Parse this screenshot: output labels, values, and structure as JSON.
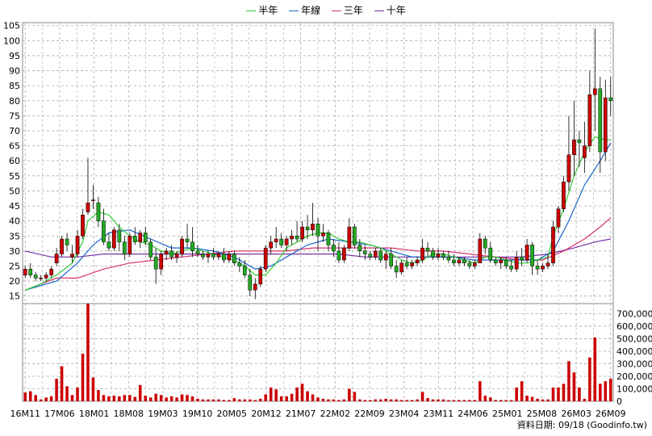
{
  "legend": [
    {
      "name": "半年",
      "color": "#33cc33"
    },
    {
      "name": "年線",
      "color": "#1a66cc"
    },
    {
      "name": "三年",
      "color": "#d6336c"
    },
    {
      "name": "十年",
      "color": "#7a2fa8"
    }
  ],
  "source_text": "資料日期: 09/18  (Goodinfo.tw)",
  "chart_data": {
    "type": "candlestick",
    "price_axis": {
      "ticks": [
        15,
        20,
        25,
        30,
        35,
        40,
        45,
        50,
        55,
        60,
        65,
        70,
        75,
        80,
        85,
        90,
        95,
        100,
        105
      ],
      "ylim": [
        12.5,
        106
      ]
    },
    "volume_axis": {
      "ticks": [
        0,
        100000,
        200000,
        300000,
        400000,
        500000,
        600000,
        700000
      ],
      "tick_labels": [
        "0",
        "100,000",
        "200,000",
        "300,000",
        "400,000",
        "500,000",
        "600,000",
        "700,000"
      ],
      "ylim": [
        0,
        780000
      ]
    },
    "x_labels": [
      "16M11",
      "17M06",
      "18M01",
      "18M08",
      "19M03",
      "19M10",
      "20M05",
      "20M12",
      "21M07",
      "22M02",
      "22M09",
      "23M04",
      "23M11",
      "24M06",
      "25M01",
      "25M08",
      "26M03",
      "26M09"
    ],
    "colors": {
      "up": "#cc0000",
      "down": "#22aa22",
      "volume": "#cc0000",
      "grid": "#aaaaaa"
    },
    "grid": true,
    "candles": [
      [
        22,
        25,
        21,
        24
      ],
      [
        24,
        26,
        21,
        22
      ],
      [
        22,
        23,
        20,
        21
      ],
      [
        21,
        22,
        20,
        21
      ],
      [
        21,
        23,
        20,
        22
      ],
      [
        22,
        25,
        21,
        24
      ],
      [
        26,
        31,
        25,
        29
      ],
      [
        29,
        35,
        28,
        34
      ],
      [
        34,
        36,
        30,
        32
      ],
      [
        28,
        32,
        26,
        29
      ],
      [
        29,
        37,
        28,
        35
      ],
      [
        35,
        44,
        34,
        42
      ],
      [
        43,
        61,
        42,
        46
      ],
      [
        47,
        52,
        44,
        47
      ],
      [
        46,
        48,
        38,
        40
      ],
      [
        40,
        44,
        32,
        33
      ],
      [
        33,
        36,
        30,
        31
      ],
      [
        31,
        38,
        30,
        37
      ],
      [
        37,
        39,
        30,
        33
      ],
      [
        33,
        35,
        27,
        29
      ],
      [
        29,
        36,
        28,
        35
      ],
      [
        35,
        38,
        32,
        33
      ],
      [
        33,
        37,
        31,
        36
      ],
      [
        36,
        38,
        32,
        33
      ],
      [
        33,
        34,
        27,
        28
      ],
      [
        28,
        31,
        19,
        24
      ],
      [
        24,
        30,
        22,
        29
      ],
      [
        29,
        31,
        27,
        30
      ],
      [
        30,
        32,
        27,
        28
      ],
      [
        28,
        30,
        26,
        29
      ],
      [
        29,
        35,
        28,
        34
      ],
      [
        34,
        39,
        31,
        33
      ],
      [
        33,
        38,
        28,
        30
      ],
      [
        30,
        32,
        28,
        29
      ],
      [
        29,
        30,
        27,
        28
      ],
      [
        28,
        30,
        26,
        29
      ],
      [
        29,
        31,
        27,
        28
      ],
      [
        28,
        30,
        27,
        29
      ],
      [
        29,
        31,
        26,
        27
      ],
      [
        27,
        30,
        26,
        29
      ],
      [
        29,
        30,
        25,
        26
      ],
      [
        26,
        28,
        23,
        25
      ],
      [
        25,
        27,
        21,
        22
      ],
      [
        22,
        24,
        15,
        17
      ],
      [
        17,
        21,
        14,
        19
      ],
      [
        19,
        25,
        18,
        24
      ],
      [
        24,
        32,
        23,
        31
      ],
      [
        31,
        35,
        29,
        33
      ],
      [
        33,
        38,
        31,
        34
      ],
      [
        34,
        36,
        31,
        32
      ],
      [
        32,
        35,
        30,
        34
      ],
      [
        34,
        37,
        32,
        35
      ],
      [
        35,
        40,
        33,
        34
      ],
      [
        34,
        40,
        33,
        38
      ],
      [
        38,
        42,
        34,
        37
      ],
      [
        37,
        46,
        35,
        39
      ],
      [
        39,
        41,
        30,
        35
      ],
      [
        35,
        39,
        33,
        36
      ],
      [
        36,
        37,
        30,
        32
      ],
      [
        32,
        34,
        28,
        30
      ],
      [
        30,
        33,
        26,
        27
      ],
      [
        27,
        32,
        26,
        31
      ],
      [
        31,
        41,
        30,
        38
      ],
      [
        38,
        39,
        31,
        32
      ],
      [
        32,
        34,
        28,
        30
      ],
      [
        30,
        32,
        27,
        29
      ],
      [
        29,
        30,
        27,
        28
      ],
      [
        28,
        31,
        27,
        30
      ],
      [
        30,
        31,
        26,
        27
      ],
      [
        27,
        30,
        24,
        29
      ],
      [
        29,
        31,
        24,
        25
      ],
      [
        25,
        27,
        21,
        23
      ],
      [
        23,
        27,
        22,
        26
      ],
      [
        26,
        28,
        24,
        25
      ],
      [
        25,
        27,
        24,
        26
      ],
      [
        26,
        28,
        25,
        27
      ],
      [
        27,
        34,
        26,
        31
      ],
      [
        31,
        33,
        28,
        30
      ],
      [
        30,
        31,
        27,
        28
      ],
      [
        28,
        31,
        27,
        29
      ],
      [
        29,
        30,
        27,
        28
      ],
      [
        28,
        30,
        26,
        27
      ],
      [
        27,
        29,
        25,
        26
      ],
      [
        26,
        28,
        25,
        27
      ],
      [
        27,
        28,
        25,
        26
      ],
      [
        26,
        27,
        24,
        25
      ],
      [
        25,
        27,
        24,
        26
      ],
      [
        26,
        36,
        26,
        34
      ],
      [
        34,
        35,
        29,
        31
      ],
      [
        31,
        33,
        26,
        27
      ],
      [
        27,
        28,
        25,
        26
      ],
      [
        26,
        28,
        24,
        27
      ],
      [
        27,
        28,
        24,
        25
      ],
      [
        25,
        27,
        23,
        24
      ],
      [
        24,
        30,
        23,
        28
      ],
      [
        28,
        31,
        25,
        27
      ],
      [
        27,
        34,
        26,
        32
      ],
      [
        32,
        33,
        22,
        25
      ],
      [
        25,
        27,
        22,
        24
      ],
      [
        24,
        26,
        23,
        25
      ],
      [
        25,
        29,
        24,
        26
      ],
      [
        26,
        40,
        25,
        38
      ],
      [
        38,
        45,
        36,
        44
      ],
      [
        44,
        55,
        43,
        53
      ],
      [
        53,
        75,
        50,
        62
      ],
      [
        62,
        80,
        55,
        67
      ],
      [
        67,
        70,
        58,
        66
      ],
      [
        61,
        73,
        56,
        65
      ],
      [
        65,
        90,
        63,
        82
      ],
      [
        82,
        104,
        70,
        84
      ],
      [
        84,
        88,
        56,
        63
      ],
      [
        63,
        87,
        60,
        81
      ],
      [
        81,
        88,
        75,
        80
      ]
    ],
    "volumes": [
      70000,
      80000,
      50000,
      15000,
      30000,
      40000,
      180000,
      280000,
      120000,
      50000,
      110000,
      380000,
      780000,
      190000,
      90000,
      50000,
      40000,
      45000,
      40000,
      50000,
      50000,
      35000,
      130000,
      45000,
      30000,
      60000,
      50000,
      30000,
      40000,
      30000,
      55000,
      50000,
      40000,
      20000,
      15000,
      15000,
      15000,
      15000,
      10000,
      10000,
      25000,
      15000,
      15000,
      15000,
      10000,
      20000,
      55000,
      110000,
      95000,
      40000,
      40000,
      60000,
      110000,
      140000,
      80000,
      55000,
      30000,
      20000,
      15000,
      15000,
      10000,
      15000,
      100000,
      75000,
      15000,
      10000,
      10000,
      15000,
      15000,
      20000,
      15000,
      15000,
      10000,
      10000,
      10000,
      15000,
      75000,
      25000,
      15000,
      15000,
      15000,
      10000,
      10000,
      10000,
      10000,
      10000,
      10000,
      160000,
      45000,
      30000,
      10000,
      10000,
      10000,
      10000,
      110000,
      160000,
      45000,
      35000,
      20000,
      15000,
      15000,
      110000,
      110000,
      140000,
      320000,
      230000,
      110000,
      20000,
      350000,
      510000,
      140000,
      160000,
      180000
    ],
    "ma_half_year": [
      [
        0,
        17
      ],
      [
        3,
        19
      ],
      [
        6,
        22
      ],
      [
        9,
        26
      ],
      [
        11,
        33
      ],
      [
        12,
        40
      ],
      [
        14,
        43
      ],
      [
        16,
        42
      ],
      [
        18,
        38
      ],
      [
        20,
        35
      ],
      [
        22,
        33
      ],
      [
        24,
        32
      ],
      [
        26,
        30
      ],
      [
        28,
        29
      ],
      [
        30,
        30
      ],
      [
        32,
        31
      ],
      [
        34,
        30
      ],
      [
        36,
        29
      ],
      [
        38,
        28
      ],
      [
        40,
        27
      ],
      [
        42,
        25
      ],
      [
        44,
        22
      ],
      [
        46,
        22
      ],
      [
        48,
        26
      ],
      [
        50,
        31
      ],
      [
        52,
        33
      ],
      [
        54,
        35
      ],
      [
        56,
        36
      ],
      [
        58,
        36
      ],
      [
        60,
        34
      ],
      [
        62,
        33
      ],
      [
        64,
        33
      ],
      [
        66,
        32
      ],
      [
        68,
        31
      ],
      [
        70,
        29
      ],
      [
        72,
        27
      ],
      [
        74,
        26
      ],
      [
        76,
        27
      ],
      [
        78,
        29
      ],
      [
        80,
        29
      ],
      [
        82,
        28
      ],
      [
        84,
        27
      ],
      [
        86,
        26
      ],
      [
        88,
        28
      ],
      [
        90,
        28
      ],
      [
        92,
        27
      ],
      [
        94,
        26
      ],
      [
        96,
        26
      ],
      [
        98,
        27
      ],
      [
        100,
        28
      ],
      [
        101,
        35
      ],
      [
        103,
        44
      ],
      [
        105,
        55
      ],
      [
        107,
        63
      ],
      [
        109,
        68
      ],
      [
        111,
        67
      ],
      [
        112,
        67
      ]
    ],
    "ma_year": [
      [
        0,
        17
      ],
      [
        6,
        20
      ],
      [
        10,
        26
      ],
      [
        13,
        32
      ],
      [
        16,
        36
      ],
      [
        20,
        37
      ],
      [
        24,
        34
      ],
      [
        28,
        31
      ],
      [
        32,
        31
      ],
      [
        36,
        30
      ],
      [
        40,
        28
      ],
      [
        44,
        24
      ],
      [
        47,
        25
      ],
      [
        50,
        28
      ],
      [
        54,
        32
      ],
      [
        58,
        34
      ],
      [
        62,
        33
      ],
      [
        66,
        32
      ],
      [
        70,
        30
      ],
      [
        74,
        28
      ],
      [
        78,
        28
      ],
      [
        82,
        28
      ],
      [
        86,
        27
      ],
      [
        90,
        27
      ],
      [
        94,
        27
      ],
      [
        98,
        27
      ],
      [
        101,
        30
      ],
      [
        104,
        40
      ],
      [
        107,
        52
      ],
      [
        110,
        60
      ],
      [
        112,
        66
      ]
    ],
    "ma_three_year": [
      [
        0,
        17
      ],
      [
        6,
        21
      ],
      [
        10,
        21
      ],
      [
        15,
        24
      ],
      [
        20,
        26
      ],
      [
        25,
        27
      ],
      [
        30,
        28
      ],
      [
        35,
        29
      ],
      [
        40,
        30
      ],
      [
        45,
        30
      ],
      [
        50,
        30
      ],
      [
        55,
        31
      ],
      [
        60,
        31
      ],
      [
        65,
        31
      ],
      [
        70,
        31
      ],
      [
        75,
        30
      ],
      [
        80,
        30
      ],
      [
        85,
        29
      ],
      [
        90,
        28
      ],
      [
        95,
        27
      ],
      [
        99,
        27
      ],
      [
        103,
        30
      ],
      [
        107,
        34
      ],
      [
        110,
        38
      ],
      [
        112,
        41
      ]
    ],
    "ma_ten_year": [
      [
        0,
        30
      ],
      [
        5,
        28
      ],
      [
        10,
        28
      ],
      [
        15,
        29
      ],
      [
        20,
        29
      ],
      [
        25,
        29
      ],
      [
        30,
        29
      ],
      [
        35,
        29
      ],
      [
        40,
        29
      ],
      [
        45,
        29
      ],
      [
        50,
        29
      ],
      [
        55,
        29
      ],
      [
        60,
        29
      ],
      [
        65,
        28
      ],
      [
        70,
        28
      ],
      [
        75,
        28
      ],
      [
        80,
        28
      ],
      [
        85,
        28
      ],
      [
        90,
        28
      ],
      [
        95,
        28
      ],
      [
        100,
        29
      ],
      [
        105,
        31
      ],
      [
        109,
        33
      ],
      [
        112,
        34
      ]
    ]
  }
}
